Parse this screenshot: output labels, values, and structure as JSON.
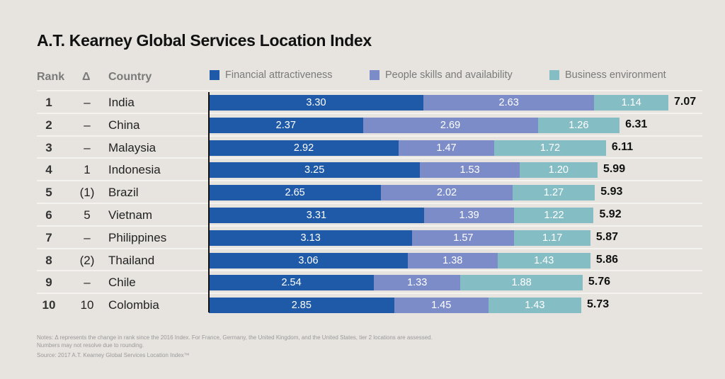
{
  "chart_data": {
    "type": "bar",
    "orientation": "horizontal",
    "stacked": true,
    "title": "A.T. Kearney Global Services Location Index",
    "columns": {
      "rank": "Rank",
      "delta": "Δ",
      "country": "Country"
    },
    "series": [
      {
        "name": "Financial attractiveness",
        "color": "#1f5aa8",
        "values": [
          3.3,
          2.37,
          2.92,
          3.25,
          2.65,
          3.31,
          3.13,
          3.06,
          2.54,
          2.85
        ]
      },
      {
        "name": "People skills and availability",
        "color": "#7b8cc9",
        "values": [
          2.63,
          2.69,
          1.47,
          1.53,
          2.02,
          1.39,
          1.57,
          1.38,
          1.33,
          1.45
        ]
      },
      {
        "name": "Business environment",
        "color": "#85bdc5",
        "values": [
          1.14,
          1.26,
          1.72,
          1.2,
          1.27,
          1.22,
          1.17,
          1.43,
          1.88,
          1.43
        ]
      }
    ],
    "rows": [
      {
        "rank": "1",
        "delta": "–",
        "country": "India",
        "total": "7.07"
      },
      {
        "rank": "2",
        "delta": "–",
        "country": "China",
        "total": "6.31"
      },
      {
        "rank": "3",
        "delta": "–",
        "country": "Malaysia",
        "total": "6.11"
      },
      {
        "rank": "4",
        "delta": "1",
        "country": "Indonesia",
        "total": "5.99"
      },
      {
        "rank": "5",
        "delta": "(1)",
        "country": "Brazil",
        "total": "5.93"
      },
      {
        "rank": "6",
        "delta": "5",
        "country": "Vietnam",
        "total": "5.92"
      },
      {
        "rank": "7",
        "delta": "–",
        "country": "Philippines",
        "total": "5.87"
      },
      {
        "rank": "8",
        "delta": "(2)",
        "country": "Thailand",
        "total": "5.86"
      },
      {
        "rank": "9",
        "delta": "–",
        "country": "Chile",
        "total": "5.76"
      },
      {
        "rank": "10",
        "delta": "10",
        "country": "Colombia",
        "total": "5.73"
      }
    ],
    "legend_position": "top",
    "grid": false
  },
  "notes": {
    "line1": "Notes: Δ represents the change in rank since the 2016 Index. For France, Germany, the United Kingdom, and the United States, tier 2 locations are assessed.",
    "line2": "Numbers may not resolve due to rounding.",
    "source": "Source: 2017 A.T. Kearney Global Services Location Index™"
  }
}
